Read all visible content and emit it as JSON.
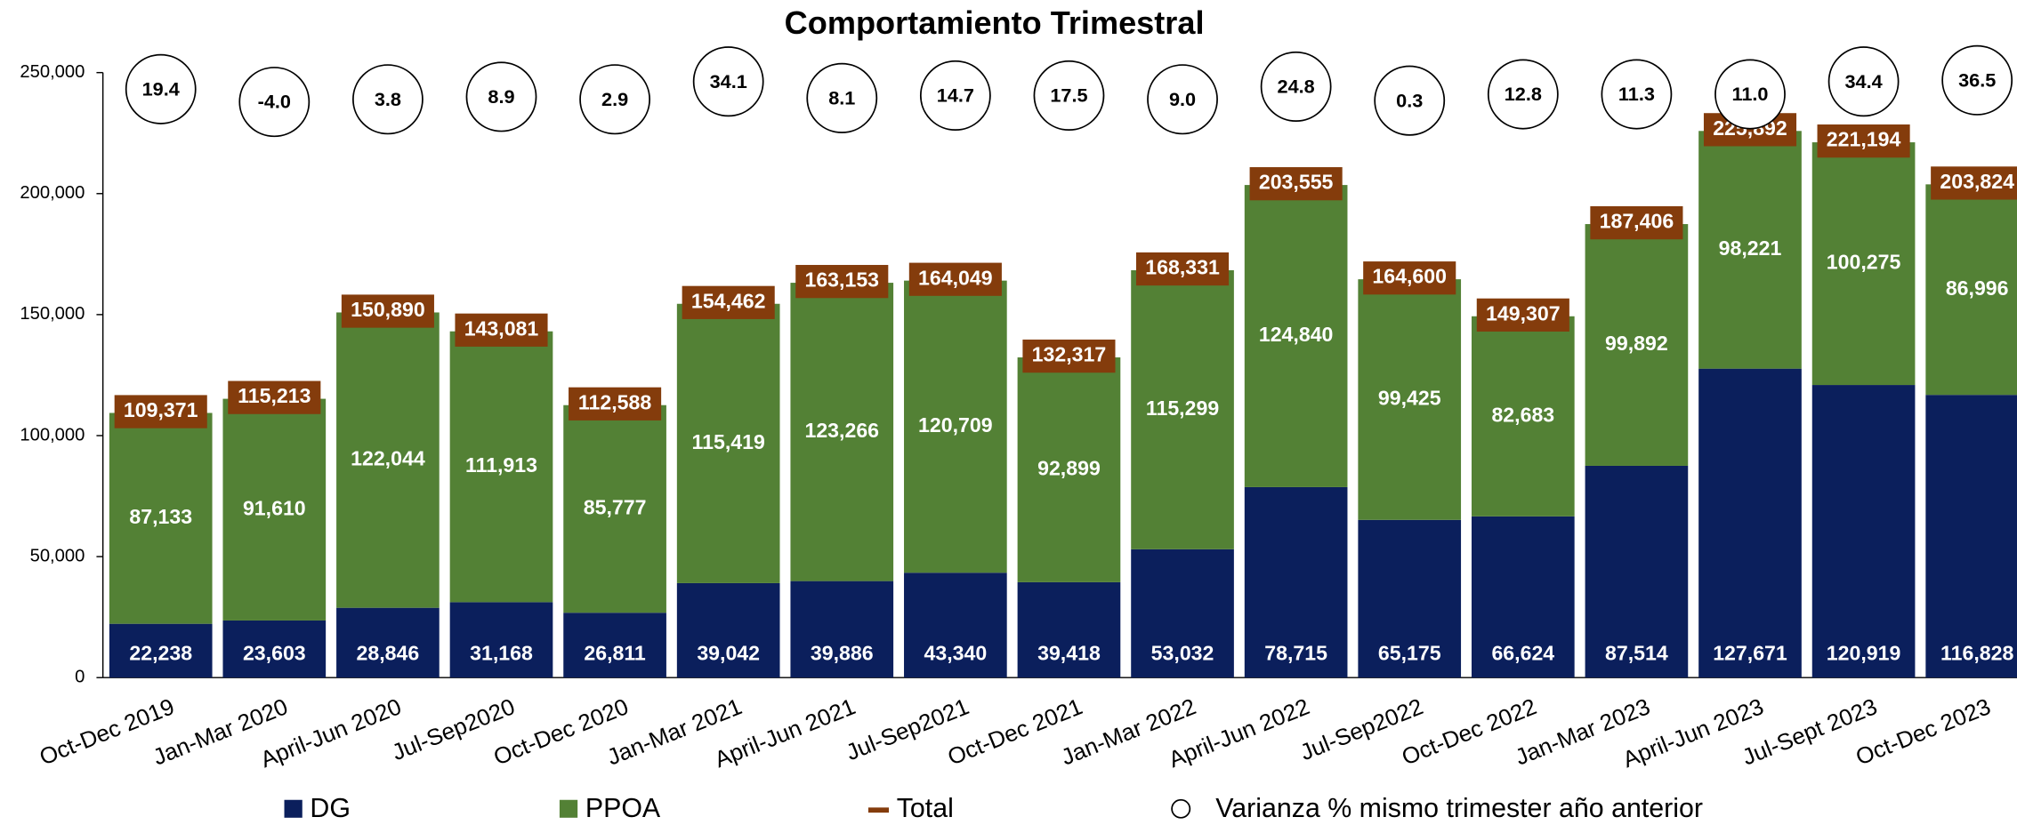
{
  "chart_data": {
    "type": "stacked-bar",
    "title": "Comportamiento Trimestral",
    "categories": [
      "Oct-Dec 2019",
      "Jan-Mar 2020",
      "April-Jun 2020",
      "Jul-Sep2020",
      "Oct-Dec 2020",
      "Jan-Mar 2021",
      "April-Jun 2021",
      "Jul-Sep2021",
      "Oct-Dec 2021",
      "Jan-Mar 2022",
      "April-Jun 2022",
      "Jul-Sep2022",
      "Oct-Dec 2022",
      "Jan-Mar 2023",
      "April-Jun 2023",
      "Jul-Sept 2023",
      "Oct-Dec 2023"
    ],
    "series": [
      {
        "name": "DG",
        "color": "#0b1f5c",
        "values": [
          22238,
          23603,
          28846,
          31168,
          26811,
          39042,
          39886,
          43340,
          39418,
          53032,
          78715,
          65175,
          66624,
          87514,
          127671,
          120919,
          116828
        ],
        "value_labels": [
          "22,238",
          "23,603",
          "28,846",
          "31,168",
          "26,811",
          "39,042",
          "39,886",
          "43,340",
          "39,418",
          "53,032",
          "78,715",
          "65,175",
          "66,624",
          "87,514",
          "127,671",
          "120,919",
          "116,828"
        ]
      },
      {
        "name": "PPOA",
        "color": "#538135",
        "values": [
          87133,
          91610,
          122044,
          111913,
          85777,
          115419,
          123266,
          120709,
          92899,
          115299,
          124840,
          99425,
          82683,
          99892,
          98221,
          100275,
          86996
        ],
        "value_labels": [
          "87,133",
          "91,610",
          "122,044",
          "111,913",
          "85,777",
          "115,419",
          "123,266",
          "120,709",
          "92,899",
          "115,299",
          "124,840",
          "99,425",
          "82,683",
          "99,892",
          "98,221",
          "100,275",
          "86,996"
        ]
      },
      {
        "name": "Total",
        "color": "#843c0c",
        "values": [
          109371,
          115213,
          150890,
          143081,
          112588,
          154462,
          163153,
          164049,
          132317,
          168331,
          203555,
          164600,
          149307,
          187406,
          225892,
          221194,
          203824
        ],
        "value_labels": [
          "109,371",
          "115,213",
          "150,890",
          "143,081",
          "112,588",
          "154,462",
          "163,153",
          "164,049",
          "132,317",
          "168,331",
          "203,555",
          "164,600",
          "149,307",
          "187,406",
          "225,892",
          "221,194",
          "203,824"
        ]
      },
      {
        "name": "Varianza % mismo trimester año anterior",
        "values": [
          19.4,
          -4.0,
          3.8,
          8.9,
          2.9,
          34.1,
          8.1,
          14.7,
          17.5,
          9.0,
          24.8,
          0.3,
          12.8,
          11.3,
          11.0,
          34.4,
          36.5
        ],
        "value_labels": [
          "19.4",
          "-4.0",
          "3.8",
          "8.9",
          "2.9",
          "34.1",
          "8.1",
          "14.7",
          "17.5",
          "9.0",
          "24.8",
          "0.3",
          "12.8",
          "11.3",
          "11.0",
          "34.4",
          "36.5"
        ]
      }
    ],
    "ylim": [
      0,
      250000
    ],
    "yticks": [
      0,
      {
        "value": 50000,
        "label": "50,000"
      },
      {
        "value": 100000,
        "label": "100,000"
      },
      {
        "value": 150000,
        "label": "150,000"
      },
      {
        "value": 200000,
        "label": "200,000"
      },
      {
        "value": 250000,
        "label": "250,000"
      }
    ]
  }
}
